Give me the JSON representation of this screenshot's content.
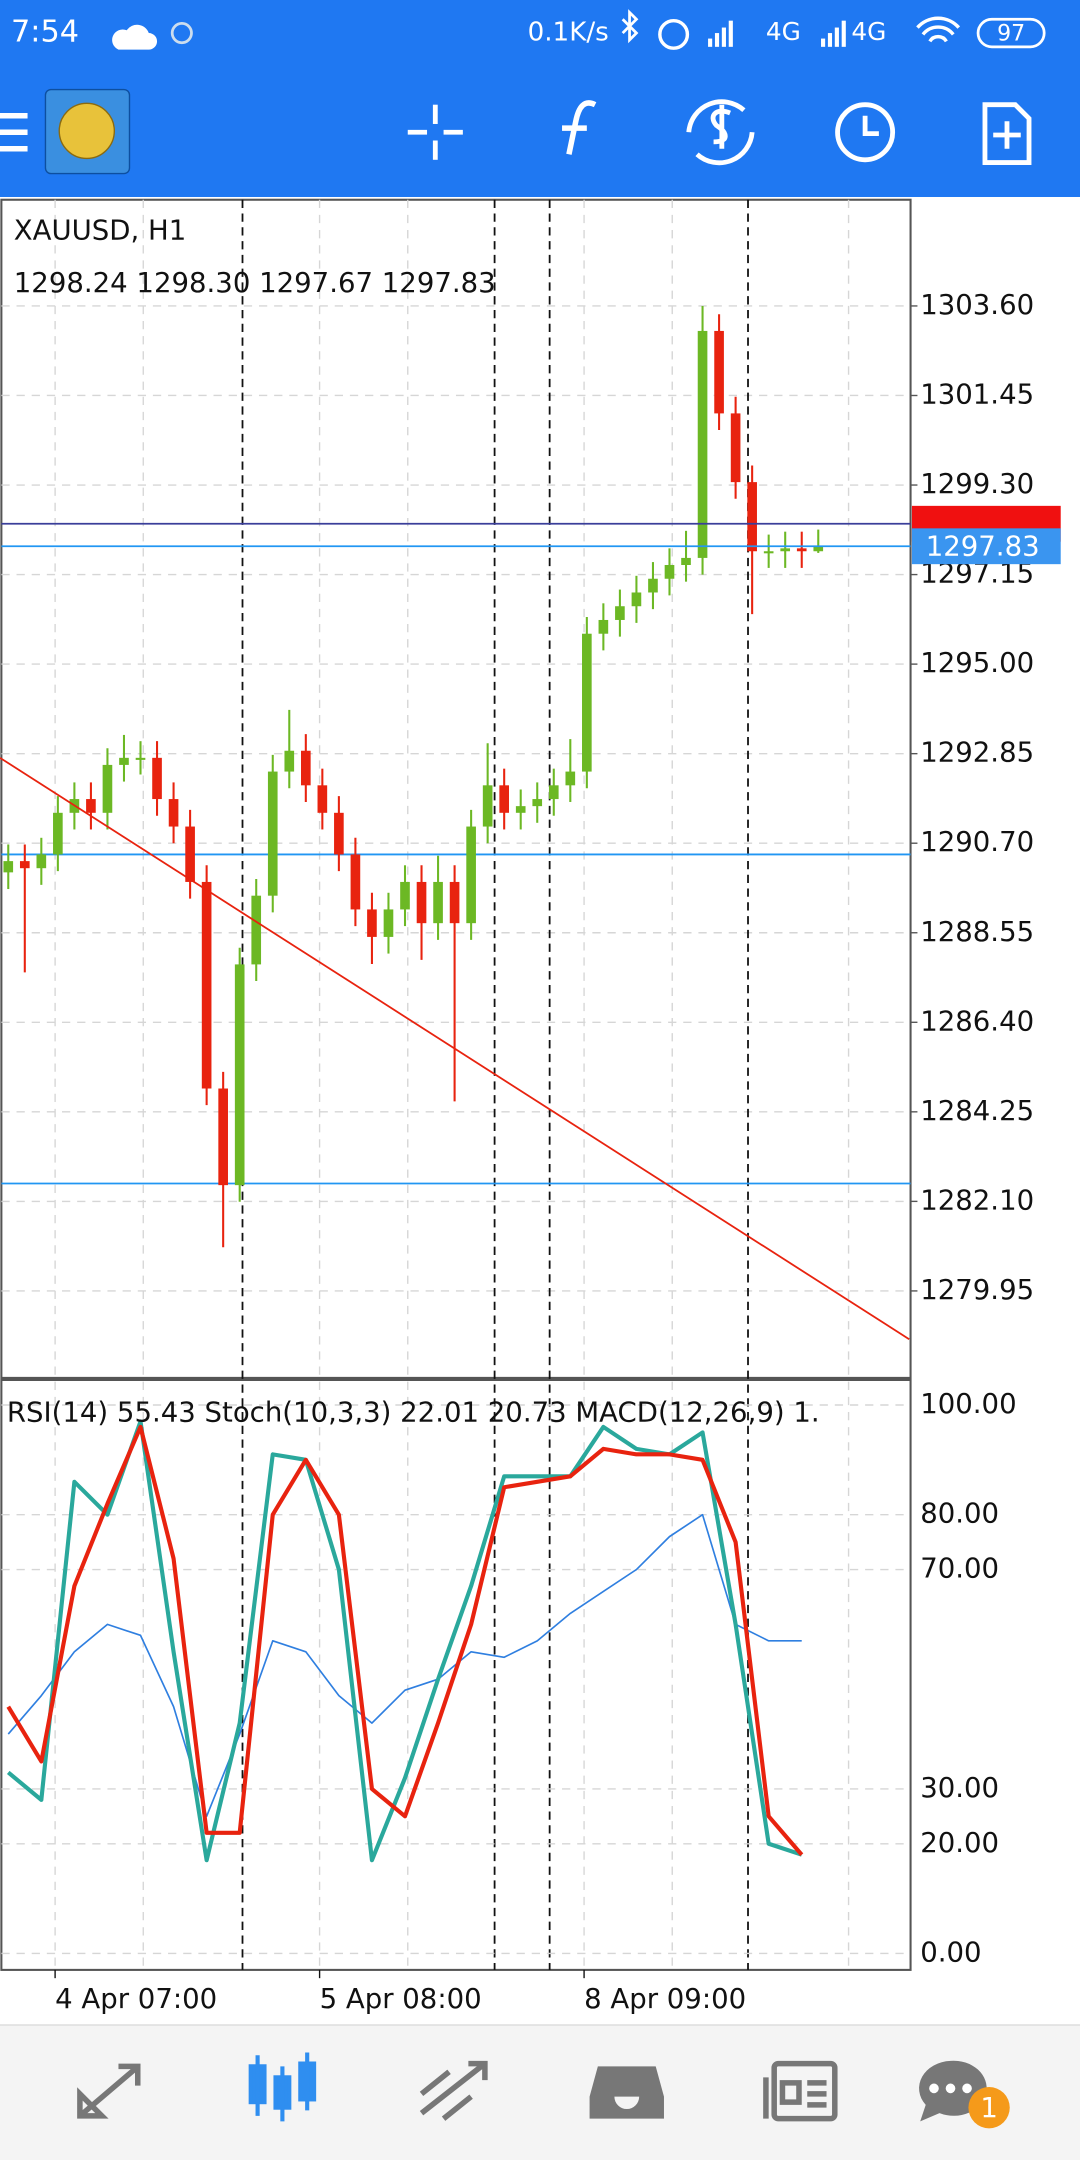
{
  "status_bar": {
    "time": "7:54",
    "speed": "0.1K/s",
    "network_1": "4G",
    "network_2": "4G",
    "battery": "97"
  },
  "bottom_nav": {
    "badge": "1"
  },
  "chart_data": [
    {
      "type": "candlestick",
      "title": "XAUUSD, H1",
      "subtitle": "1298.24 1298.30 1297.67 1297.83",
      "x_labels": [
        "4 Apr 07:00",
        "5 Apr 08:00",
        "8 Apr 09:00"
      ],
      "open": [
        1290.0,
        1290.27,
        1290.1,
        1290.43,
        1291.43,
        1291.76,
        1291.43,
        1292.58,
        1292.75,
        1292.75,
        1291.76,
        1291.1,
        1289.77,
        1284.81,
        1282.49,
        1287.79,
        1289.44,
        1292.42,
        1292.92,
        1292.09,
        1291.43,
        1290.43,
        1289.11,
        1288.45,
        1289.11,
        1289.77,
        1288.78,
        1289.77,
        1288.78,
        1291.1,
        1292.09,
        1291.43,
        1291.59,
        1291.76,
        1292.09,
        1292.42,
        1295.73,
        1296.06,
        1296.39,
        1296.72,
        1297.05,
        1297.38,
        1297.55,
        1303.0,
        1301.02,
        1299.37,
        1297.71,
        1297.71,
        1297.78,
        1297.71
      ],
      "high": [
        1290.67,
        1290.67,
        1290.83,
        1291.83,
        1292.16,
        1292.16,
        1292.98,
        1293.3,
        1293.15,
        1293.15,
        1292.16,
        1291.5,
        1290.17,
        1285.21,
        1288.19,
        1289.84,
        1292.82,
        1293.9,
        1293.32,
        1292.49,
        1291.83,
        1290.83,
        1289.51,
        1289.51,
        1290.17,
        1290.17,
        1290.4,
        1290.17,
        1291.5,
        1293.1,
        1292.49,
        1291.99,
        1292.16,
        1292.49,
        1293.2,
        1296.13,
        1296.46,
        1296.79,
        1297.12,
        1297.45,
        1297.78,
        1298.2,
        1303.6,
        1303.4,
        1301.42,
        1299.77,
        1298.11,
        1298.18,
        1298.18,
        1298.23
      ],
      "low": [
        1289.6,
        1287.6,
        1289.7,
        1290.03,
        1291.03,
        1291.03,
        1291.03,
        1292.18,
        1292.35,
        1291.36,
        1290.7,
        1289.37,
        1284.41,
        1281.0,
        1282.09,
        1287.39,
        1289.04,
        1292.02,
        1291.69,
        1291.03,
        1290.03,
        1288.71,
        1287.8,
        1288.05,
        1288.71,
        1287.9,
        1288.38,
        1284.5,
        1288.38,
        1290.7,
        1291.03,
        1291.03,
        1291.19,
        1291.36,
        1291.69,
        1292.02,
        1295.33,
        1295.66,
        1295.99,
        1296.32,
        1296.65,
        1296.98,
        1297.15,
        1300.62,
        1298.97,
        1296.2,
        1297.31,
        1297.31,
        1297.31,
        1297.67
      ],
      "close": [
        1290.27,
        1290.1,
        1290.43,
        1291.43,
        1291.76,
        1291.43,
        1292.58,
        1292.75,
        1292.75,
        1291.76,
        1291.1,
        1289.77,
        1284.81,
        1282.49,
        1287.79,
        1289.44,
        1292.42,
        1292.92,
        1292.09,
        1291.43,
        1290.43,
        1289.11,
        1288.45,
        1289.11,
        1289.77,
        1288.78,
        1289.77,
        1288.78,
        1291.1,
        1292.09,
        1291.43,
        1291.59,
        1291.76,
        1292.09,
        1292.42,
        1295.73,
        1296.06,
        1296.39,
        1296.72,
        1297.05,
        1297.38,
        1297.55,
        1303.0,
        1301.02,
        1299.37,
        1297.71,
        1297.71,
        1297.78,
        1297.71,
        1297.83
      ],
      "up_color": "#6cb824",
      "down_color": "#e8230f",
      "ylim": [
        1277.87,
        1306.15
      ],
      "yticks": [
        {
          "value": 1303.6,
          "label": "1303.60"
        },
        {
          "value": 1301.45,
          "label": "1301.45"
        },
        {
          "value": 1299.3,
          "label": "1299.30"
        },
        {
          "value": 1297.15,
          "label": "1297.15"
        },
        {
          "value": 1295,
          "label": "1295.00"
        },
        {
          "value": 1292.85,
          "label": "1292.85"
        },
        {
          "value": 1290.7,
          "label": "1290.70"
        },
        {
          "value": 1288.55,
          "label": "1288.55"
        },
        {
          "value": 1286.4,
          "label": "1286.40"
        },
        {
          "value": 1284.25,
          "label": "1284.25"
        },
        {
          "value": 1282.1,
          "label": "1282.10"
        },
        {
          "value": 1279.95,
          "label": "1279.95"
        }
      ],
      "grid": true,
      "ask": 1298.37,
      "bid": 1297.83,
      "levels": [
        1290.43,
        1282.53
      ],
      "level_color": "#2196f3",
      "trendline": {
        "from": [
          -0.5,
          1292.75
        ],
        "to": [
          54.5,
          1278.79
        ],
        "color": "#e8230f"
      },
      "vlines": [
        14.17,
        29.42,
        32.75,
        44.75
      ]
    },
    {
      "type": "line",
      "title": "RSI(14) 55.43 Stoch(10,3,3) 22.01 20.73 MACD(12,26,9) 1.",
      "ylim": [
        -3,
        104
      ],
      "yticks": [
        {
          "value": 100,
          "label": "100.00"
        },
        {
          "value": 80,
          "label": "80.00"
        },
        {
          "value": 70,
          "label": "70.00"
        },
        {
          "value": 30,
          "label": "30.00"
        },
        {
          "value": 20,
          "label": "20.00"
        },
        {
          "value": 0,
          "label": "0.00"
        }
      ],
      "series": [
        {
          "color": "#2f7fe0",
          "width": 1.2,
          "values": [
            40,
            47,
            55,
            60,
            58,
            45,
            25,
            40,
            57,
            55,
            47,
            42,
            48,
            50,
            55,
            54,
            57,
            62,
            66,
            70,
            76,
            80,
            60,
            57,
            57
          ]
        },
        {
          "color": "#2aa89c",
          "width": 3,
          "values": [
            33,
            28,
            86,
            80,
            97,
            55,
            17,
            42,
            91,
            90,
            70,
            17,
            32,
            50,
            67,
            87,
            87,
            87,
            96,
            92,
            91,
            95,
            60,
            20,
            18
          ]
        },
        {
          "color": "#e8230f",
          "width": 3,
          "values": [
            45,
            35,
            67,
            82,
            96,
            72,
            22,
            22,
            80,
            90,
            80,
            30,
            25,
            42,
            60,
            85,
            86,
            87,
            92,
            91,
            91,
            90,
            75,
            25,
            18
          ]
        }
      ]
    }
  ]
}
